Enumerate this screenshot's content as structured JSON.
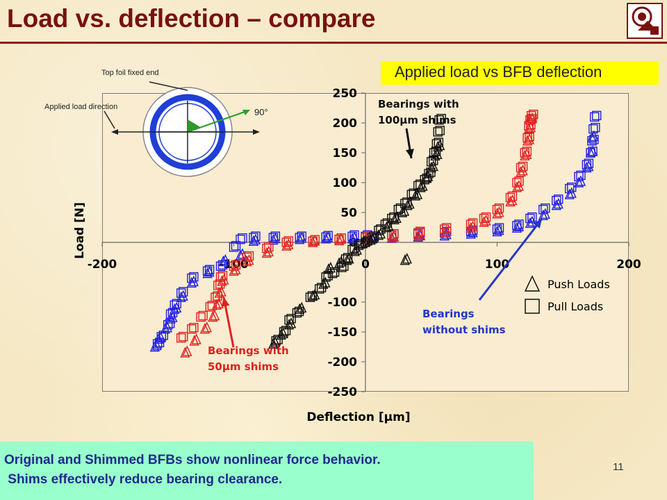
{
  "slide": {
    "title": "Load vs. deflection – compare",
    "banner": "Applied load vs BFB deflection",
    "bottom_lines": [
      "Original and Shimmed BFBs show nonlinear force behavior.",
      " Shims effectively reduce bearing clearance."
    ],
    "page_number": "11",
    "colors": {
      "title": "#7a1010",
      "banner": "#ffff00",
      "note_bg": "#99ffcc",
      "note_text": "#1f2a8f"
    }
  },
  "inset": {
    "labels": {
      "fixed_end": "Top foil fixed end",
      "load_direction": "Applied load direction",
      "angle": "90°"
    },
    "colors": {
      "ring": "#1f3fd6",
      "arrow": "#2aa02a"
    }
  },
  "chart_data": {
    "type": "scatter",
    "title": "",
    "xlabel": "Deflection [μm]",
    "ylabel": "Load [N]",
    "xlim": [
      -200,
      200
    ],
    "ylim": [
      -250,
      250
    ],
    "x_ticks": [
      "-200",
      "-100",
      "0",
      "100",
      "200"
    ],
    "y_ticks": [
      "250",
      "200",
      "150",
      "100",
      "50",
      "0",
      "-100",
      "-150",
      "-200",
      "-250"
    ],
    "legend": {
      "placement": "bottom-right",
      "entries": [
        {
          "marker": "triangle",
          "label": "Push Loads"
        },
        {
          "marker": "square",
          "label": "Pull Loads"
        }
      ]
    },
    "annotations": [
      {
        "text": [
          "Bearings with",
          "100μm shims"
        ],
        "color": "#111111"
      },
      {
        "text": [
          "Bearings with",
          "50μm shims"
        ],
        "color": "#e02020"
      },
      {
        "text": [
          "Bearings",
          "without shims"
        ],
        "color": "#2436c8"
      }
    ],
    "series": [
      {
        "color": "#2020e0",
        "marker": "square",
        "x": [
          -158,
          -155,
          -150,
          -148,
          -145,
          -140,
          -132,
          -120,
          -110,
          -100,
          -95,
          -85,
          -70,
          -50,
          -30,
          -10,
          0,
          20,
          40,
          60,
          80,
          100,
          115,
          125,
          135,
          145,
          155,
          162,
          168,
          171,
          172,
          173,
          174
        ],
        "y": [
          -170,
          -158,
          -138,
          -120,
          -105,
          -85,
          -60,
          -48,
          -40,
          -8,
          5,
          8,
          8,
          8,
          9,
          10,
          10,
          12,
          14,
          16,
          18,
          22,
          28,
          40,
          55,
          70,
          90,
          110,
          130,
          150,
          170,
          190,
          210
        ]
      },
      {
        "color": "#2020e0",
        "marker": "triangle",
        "x": [
          -160,
          -157,
          -152,
          -148,
          -145,
          -140,
          -132,
          -120,
          -108,
          -95,
          -85,
          -70,
          -50,
          -30,
          -10,
          5,
          20,
          40,
          60,
          80,
          100,
          115,
          125,
          135,
          145,
          155,
          162,
          168,
          171,
          172
        ],
        "y": [
          -175,
          -162,
          -145,
          -128,
          -112,
          -92,
          -68,
          -52,
          -32,
          -22,
          2,
          4,
          5,
          6,
          6,
          6,
          7,
          9,
          11,
          14,
          18,
          24,
          32,
          45,
          62,
          80,
          100,
          125,
          150,
          175
        ]
      },
      {
        "color": "#e02020",
        "marker": "square",
        "x": [
          -140,
          -132,
          -125,
          -118,
          -114,
          -112,
          -110,
          -100,
          -90,
          -75,
          -60,
          -40,
          -20,
          0,
          20,
          40,
          60,
          80,
          90,
          100,
          110,
          115,
          118,
          121,
          123,
          124,
          125,
          126
        ],
        "y": [
          -160,
          -145,
          -125,
          -108,
          -92,
          -72,
          -58,
          -40,
          -25,
          -10,
          0,
          2,
          5,
          8,
          12,
          16,
          22,
          30,
          40,
          55,
          75,
          100,
          125,
          150,
          175,
          195,
          205,
          212
        ]
      },
      {
        "color": "#e02020",
        "marker": "triangle",
        "x": [
          -137,
          -130,
          -122,
          -116,
          -113,
          -111,
          -109,
          -100,
          -90,
          -75,
          -60,
          -40,
          -20,
          0,
          20,
          40,
          60,
          80,
          90,
          100,
          110,
          115,
          118,
          121,
          123,
          124,
          125
        ],
        "y": [
          -185,
          -165,
          -145,
          -125,
          -105,
          -85,
          -65,
          -48,
          -32,
          -18,
          -6,
          0,
          3,
          5,
          8,
          11,
          16,
          24,
          34,
          48,
          68,
          92,
          118,
          145,
          170,
          190,
          205
        ]
      },
      {
        "color": "#111111",
        "marker": "square",
        "x": [
          -68,
          -62,
          -58,
          -52,
          -42,
          -35,
          -30,
          -25,
          -18,
          -15,
          -10,
          -5,
          0,
          5,
          10,
          15,
          20,
          25,
          30,
          35,
          40,
          45,
          48,
          50,
          52,
          54,
          55,
          56
        ],
        "y": [
          -165,
          -150,
          -130,
          -118,
          -92,
          -78,
          -58,
          -52,
          -42,
          -28,
          -12,
          -5,
          0,
          8,
          20,
          30,
          40,
          55,
          65,
          80,
          95,
          105,
          115,
          135,
          150,
          165,
          185,
          205
        ]
      },
      {
        "color": "#111111",
        "marker": "triangle",
        "x": [
          -70,
          -64,
          -58,
          -50,
          -40,
          -32,
          -28,
          -20,
          -14,
          -8,
          -2,
          4,
          10,
          16,
          22,
          28,
          32,
          38,
          42,
          46,
          50,
          53,
          55,
          30
        ],
        "y": [
          -170,
          -155,
          -138,
          -112,
          -90,
          -70,
          -45,
          -35,
          -30,
          -15,
          -2,
          4,
          12,
          25,
          38,
          50,
          62,
          78,
          92,
          108,
          125,
          145,
          160,
          -30
        ]
      }
    ]
  }
}
